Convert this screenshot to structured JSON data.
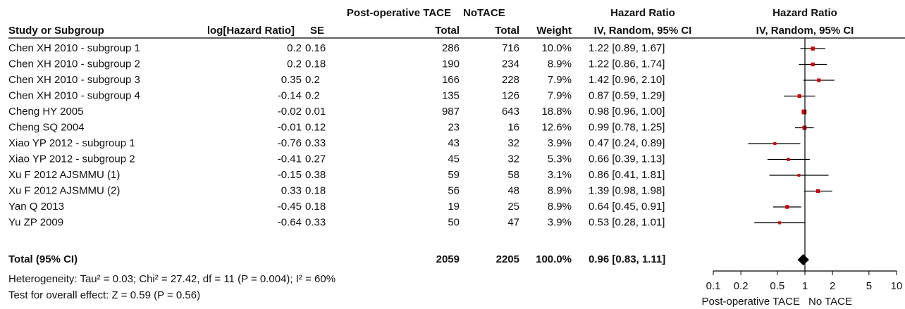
{
  "chart_data": {
    "type": "forest",
    "headers": {
      "group1": "Post-operative TACE",
      "group2": "NoTACE",
      "hr_table": "Hazard Ratio",
      "hr_plot": "Hazard Ratio",
      "study": "Study or Subgroup",
      "log_hr": "log[Hazard Ratio]",
      "se": "SE",
      "total1": "Total",
      "total2": "Total",
      "weight": "Weight",
      "method_table": "IV, Random, 95% CI",
      "method_plot": "IV, Random, 95% CI"
    },
    "categories": [
      "Chen XH 2010 - subgroup 1",
      "Chen XH 2010 - subgroup 2",
      "Chen XH 2010 - subgroup 3",
      "Chen XH 2010 - subgroup 4",
      "Cheng HY 2005",
      "Cheng SQ 2004",
      "Xiao YP 2012 - subgroup 1",
      "Xiao YP 2012 - subgroup 2",
      "Xu F 2012 AJSMMU (1)",
      "Xu F 2012 AJSMMU (2)",
      "Yan Q 2013",
      "Yu ZP 2009"
    ],
    "log_hr": [
      0.2,
      0.2,
      0.35,
      -0.14,
      -0.02,
      -0.01,
      -0.76,
      -0.41,
      -0.15,
      0.33,
      -0.45,
      -0.64
    ],
    "se": [
      0.16,
      0.18,
      0.2,
      0.2,
      0.01,
      0.12,
      0.33,
      0.27,
      0.38,
      0.18,
      0.18,
      0.33
    ],
    "total_treated": [
      286,
      190,
      166,
      135,
      987,
      23,
      43,
      45,
      59,
      56,
      19,
      50
    ],
    "total_control": [
      716,
      234,
      228,
      126,
      643,
      16,
      32,
      32,
      58,
      48,
      25,
      47
    ],
    "weights": [
      10,
      8.9,
      7.9,
      7.9,
      18.8,
      12.6,
      3.9,
      5.3,
      3.1,
      8.9,
      8.9,
      3.9
    ],
    "weight_labels": [
      "10.0%",
      "8.9%",
      "7.9%",
      "7.9%",
      "18.8%",
      "12.6%",
      "3.9%",
      "5.3%",
      "3.1%",
      "8.9%",
      "8.9%",
      "3.9%"
    ],
    "values": [
      1.22,
      1.22,
      1.42,
      0.87,
      0.98,
      0.99,
      0.47,
      0.66,
      0.86,
      1.39,
      0.64,
      0.53
    ],
    "lower": [
      0.89,
      0.86,
      0.96,
      0.59,
      0.96,
      0.78,
      0.24,
      0.39,
      0.41,
      0.98,
      0.45,
      0.28
    ],
    "upper": [
      1.67,
      1.74,
      2.1,
      1.29,
      1.0,
      1.25,
      0.89,
      1.13,
      1.81,
      1.98,
      0.91,
      1.01
    ],
    "value_labels": [
      "1.22 [0.89, 1.67]",
      "1.22 [0.86, 1.74]",
      "1.42 [0.96, 2.10]",
      "0.87 [0.59, 1.29]",
      "0.98 [0.96, 1.00]",
      "0.99 [0.78, 1.25]",
      "0.47 [0.24, 0.89]",
      "0.66 [0.39, 1.13]",
      "0.86 [0.41, 1.81]",
      "1.39 [0.98, 1.98]",
      "0.64 [0.45, 0.91]",
      "0.53 [0.28, 1.01]"
    ],
    "total": {
      "label": "Total (95% CI)",
      "treated": 2059,
      "control": 2205,
      "weight": 100,
      "weight_label": "100.0%",
      "value": 0.96,
      "lower": 0.83,
      "upper": 1.11,
      "value_label": "0.96 [0.83, 1.11]"
    },
    "heterogeneity": "Heterogeneity: Tau² = 0.03; Chi² = 27.42, df = 11 (P = 0.004); I² = 60%",
    "overall_effect": "Test for overall effect: Z = 0.59 (P = 0.56)",
    "xscale": "log",
    "xlim": [
      0.1,
      10
    ],
    "xticks": [
      0.1,
      0.2,
      0.5,
      1,
      2,
      5,
      10
    ],
    "xlabel_left": "Post-operative TACE",
    "xlabel_right": "No TACE",
    "color": "#d00000"
  }
}
